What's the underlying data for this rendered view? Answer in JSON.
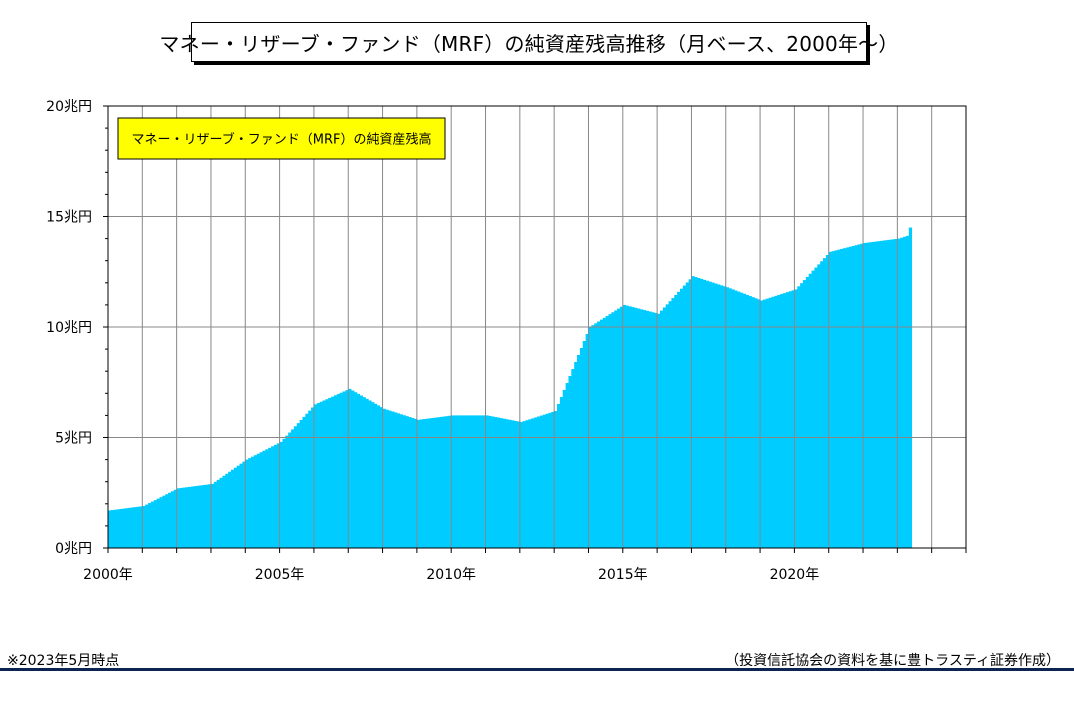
{
  "title": "マネー・リザーブ・ファンド（MRF）の純資産残高推移（月ベース、2000年～）",
  "footer": {
    "note": "※2023年5月時点",
    "source": "（投資信託協会の資料を基に豊トラスティ証券作成）"
  },
  "colors": {
    "bar": "#00ccff",
    "legend_bg": "#ffff00",
    "grid": "#888888",
    "footer_rule": "#0d2350"
  },
  "chart_data": {
    "type": "bar",
    "title": "マネー・リザーブ・ファンド（MRF）の純資産残高推移（月ベース、2000年～）",
    "legend": {
      "label": "マネー・リザーブ・ファンド（MRF）の純資産残高",
      "placement": "top-left"
    },
    "xlabel": "",
    "ylabel": "",
    "unit": "兆円",
    "ylim": [
      0,
      20
    ],
    "xlim": [
      "2000-01",
      "2024-12"
    ],
    "y_ticks": [
      "0兆円",
      "5兆円",
      "10兆円",
      "15兆円",
      "20兆円"
    ],
    "x_ticks": [
      "2000年",
      "2005年",
      "2010年",
      "2015年",
      "2020年"
    ],
    "grid": true,
    "start_month": "2000-01",
    "end_month": "2023-05",
    "annual_values_start_of_year": {
      "2000": 1.7,
      "2001": 1.9,
      "2002": 2.7,
      "2003": 2.9,
      "2004": 4.0,
      "2005": 4.8,
      "2006": 6.5,
      "2007": 7.2,
      "2008": 6.3,
      "2009": 5.8,
      "2010": 6.0,
      "2011": 6.0,
      "2012": 5.7,
      "2013": 6.2,
      "2014": 10.0,
      "2015": 11.0,
      "2016": 10.6,
      "2017": 12.3,
      "2018": 11.8,
      "2019": 11.2,
      "2020": 11.7,
      "2021": 13.4,
      "2022": 13.8,
      "2023": 14.0
    },
    "last_value": 14.5
  }
}
